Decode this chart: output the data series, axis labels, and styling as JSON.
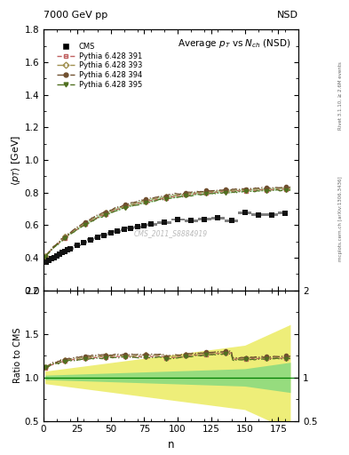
{
  "title_main": "Average $p_T$ vs $N_{ch}$ (NSD)",
  "top_left_label": "7000 GeV pp",
  "top_right_label": "NSD",
  "ylabel_main": "$\\langle p_T \\rangle$ [GeV]",
  "ylabel_ratio": "Ratio to CMS",
  "xlabel": "n",
  "right_label_top": "Rivet 3.1.10, ≥ 2.6M events",
  "right_label_bot": "mcplots.cern.ch [arXiv:1306.3436]",
  "watermark": "CMS_2011_S8884919",
  "ylim_main": [
    0.2,
    1.8
  ],
  "ylim_ratio": [
    0.5,
    2.0
  ],
  "xlim": [
    0,
    190
  ],
  "cms_color": "#111111",
  "p391_color": "#c06060",
  "p393_color": "#a09050",
  "p394_color": "#705030",
  "p395_color": "#507020",
  "band_green_color": "#80d880",
  "band_yellow_color": "#e8e840",
  "ratio_line_color": "#008000"
}
